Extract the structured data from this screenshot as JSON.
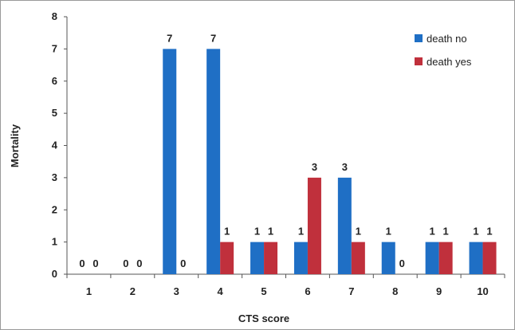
{
  "chart_data": {
    "type": "bar",
    "categories": [
      "1",
      "2",
      "3",
      "4",
      "5",
      "6",
      "7",
      "8",
      "9",
      "10"
    ],
    "series": [
      {
        "name": "death no",
        "color": "#1f6fc5",
        "values": [
          0,
          0,
          7,
          7,
          1,
          1,
          3,
          1,
          1,
          1
        ]
      },
      {
        "name": "death yes",
        "color": "#c0303c",
        "values": [
          0,
          0,
          0,
          1,
          1,
          3,
          1,
          0,
          1,
          1
        ]
      }
    ],
    "title": "",
    "xlabel": "CTS score",
    "ylabel": "Mortality",
    "ylim": [
      0,
      8
    ],
    "yticks": [
      "0",
      "1",
      "2",
      "3",
      "4",
      "5",
      "6",
      "7",
      "8"
    ],
    "data_labels": true,
    "grid": false,
    "legend_position": "top-right"
  }
}
